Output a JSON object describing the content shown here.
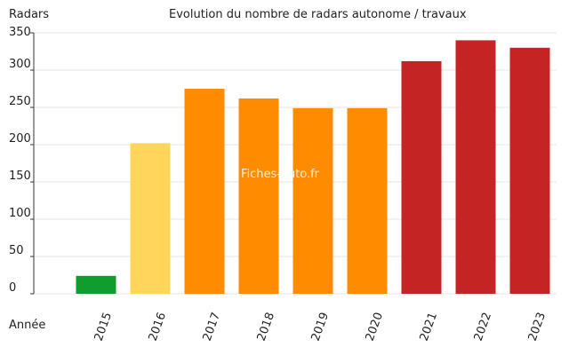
{
  "chart_data": {
    "type": "bar",
    "title": "Evolution du nombre de radars autonome / travaux",
    "ylabel": "Radars",
    "xlabel": "Année",
    "watermark": "Fiches-auto.fr",
    "categories": [
      "2015",
      "2016",
      "2017",
      "2018",
      "2019",
      "2020",
      "2021",
      "2022",
      "2023"
    ],
    "values": [
      24,
      202,
      275,
      262,
      249,
      249,
      312,
      340,
      330
    ],
    "bar_colors": [
      "#0f9d2e",
      "#ffd55c",
      "#ff8c00",
      "#ff8c00",
      "#ff8c00",
      "#ff8c00",
      "#c42424",
      "#c42424",
      "#c42424"
    ],
    "ylim": [
      0,
      350
    ],
    "yticks": [
      0,
      50,
      100,
      150,
      200,
      250,
      300,
      350
    ],
    "grid": true
  }
}
